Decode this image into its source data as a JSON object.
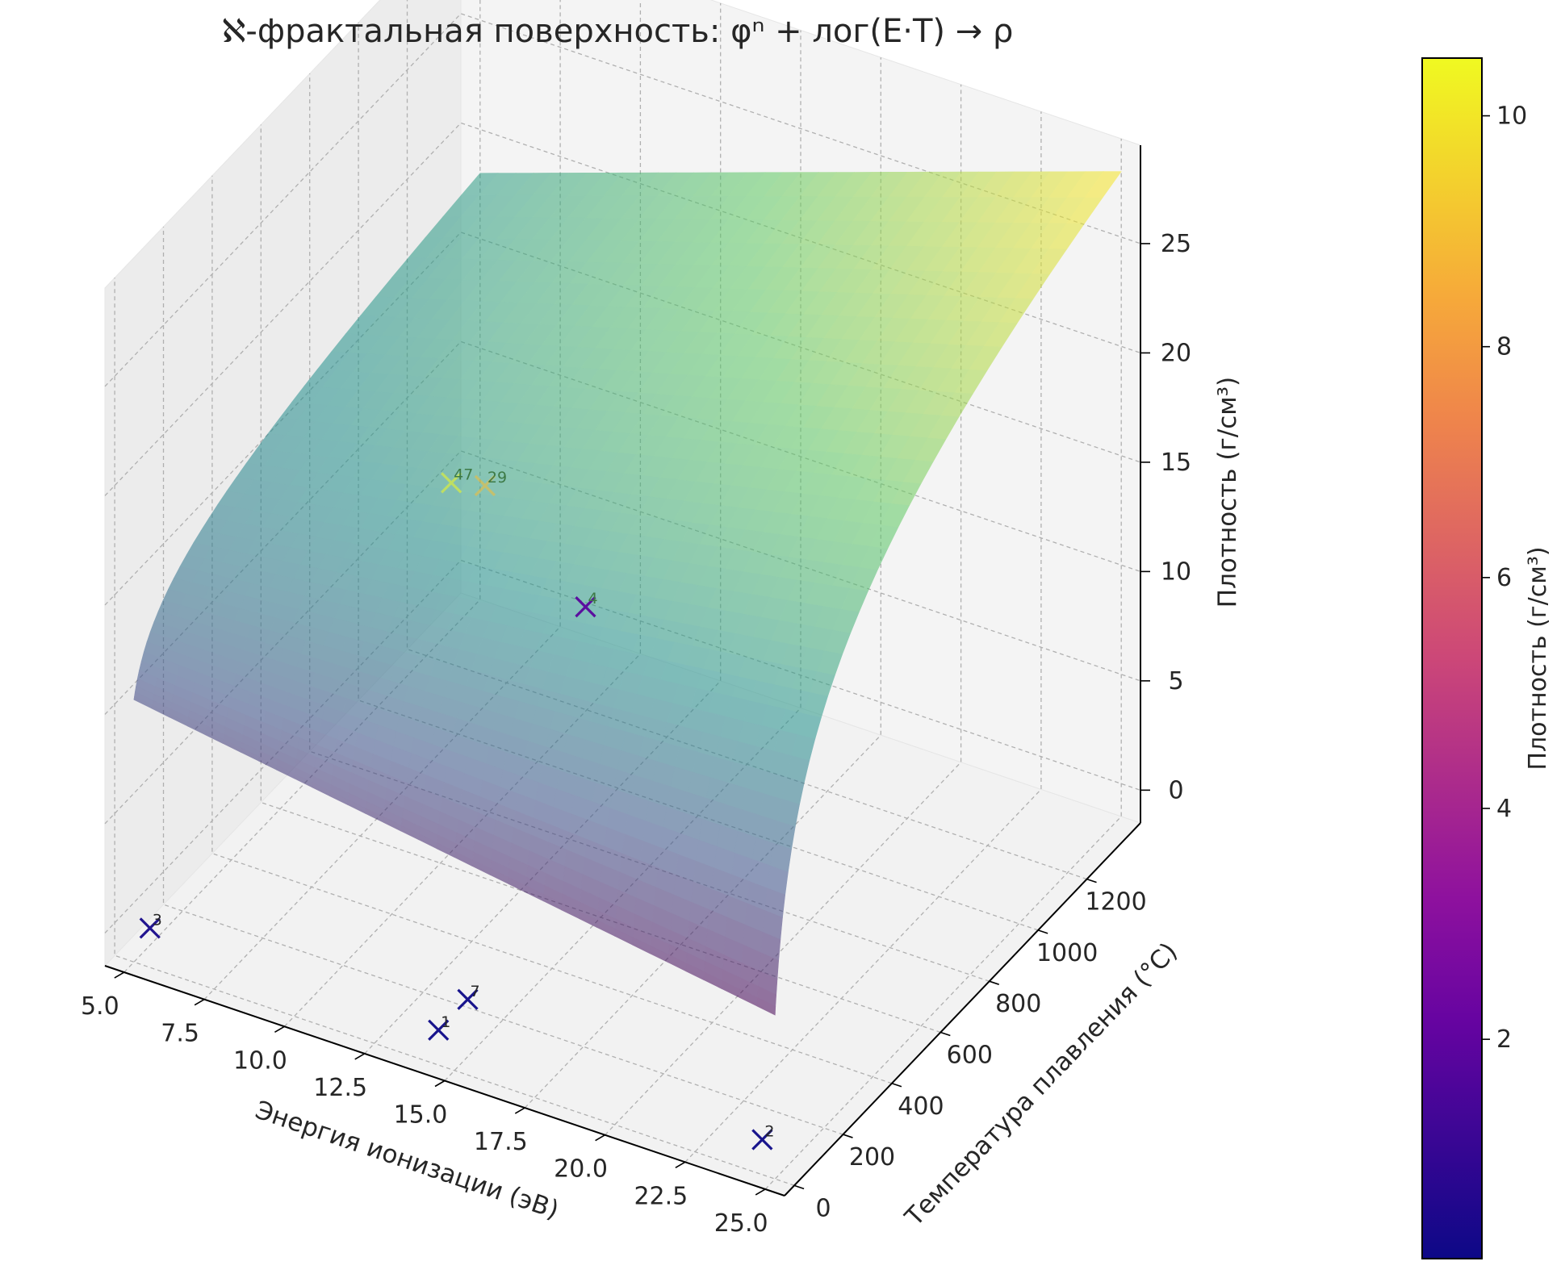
{
  "chart_data": {
    "type": "surface3d",
    "title": "ℵ-фрактальная поверхность: φⁿ + лог(E·T) → ρ",
    "xlabel": "Энергия ионизации (эВ)",
    "ylabel": "Температура плавления (°C)",
    "zlabel": "Плотность (г/см³)",
    "xlim": [
      4.4,
      25.6
    ],
    "ylim": [
      -40,
      1420
    ],
    "zlim": [
      -1.5,
      29.5
    ],
    "x_ticks": [
      "5.0",
      "7.5",
      "10.0",
      "12.5",
      "15.0",
      "17.5",
      "20.0",
      "22.5",
      "25.0"
    ],
    "y_ticks": [
      "0",
      "200",
      "400",
      "600",
      "800",
      "1000",
      "1200"
    ],
    "z_ticks": [
      "0",
      "5",
      "10",
      "15",
      "20",
      "25"
    ],
    "grid": true,
    "surface": {
      "colormap": "viridis",
      "alpha": 0.55,
      "x_range": [
        5.0,
        25.0
      ],
      "y_range": [
        0,
        1420
      ],
      "approx_z": {
        "at_T_min": [
          10.5,
          6.0
        ],
        "at_T_max": [
          18.0,
          28.0
        ],
        "note_corners": [
          "E=5,T=0: ~10.5",
          "E=25,T=0: ~6",
          "E=5,T=1420: ~18",
          "E=25,T=1420: ~28"
        ]
      }
    },
    "points": [
      {
        "label": "3",
        "E": 5.5,
        "T": 0,
        "rho": 0.3
      },
      {
        "label": "1",
        "E": 14.5,
        "T": 0,
        "rho": 0.1
      },
      {
        "label": "7",
        "E": 14.5,
        "T": 120,
        "rho": 0.1
      },
      {
        "label": "2",
        "E": 24.6,
        "T": 0,
        "rho": 0.1
      },
      {
        "label": "47",
        "E": 7.6,
        "T": 960,
        "rho": 10.5
      },
      {
        "label": "29",
        "E": 7.7,
        "T": 1085,
        "rho": 8.96
      },
      {
        "label": "4",
        "E": 9.3,
        "T": 1287,
        "rho": 1.85
      }
    ],
    "colorbar": {
      "colormap": "plasma",
      "label": "Плотность (г/см³)",
      "range": [
        0.1,
        10.5
      ],
      "ticks": [
        "2",
        "4",
        "6",
        "8",
        "10"
      ]
    }
  }
}
